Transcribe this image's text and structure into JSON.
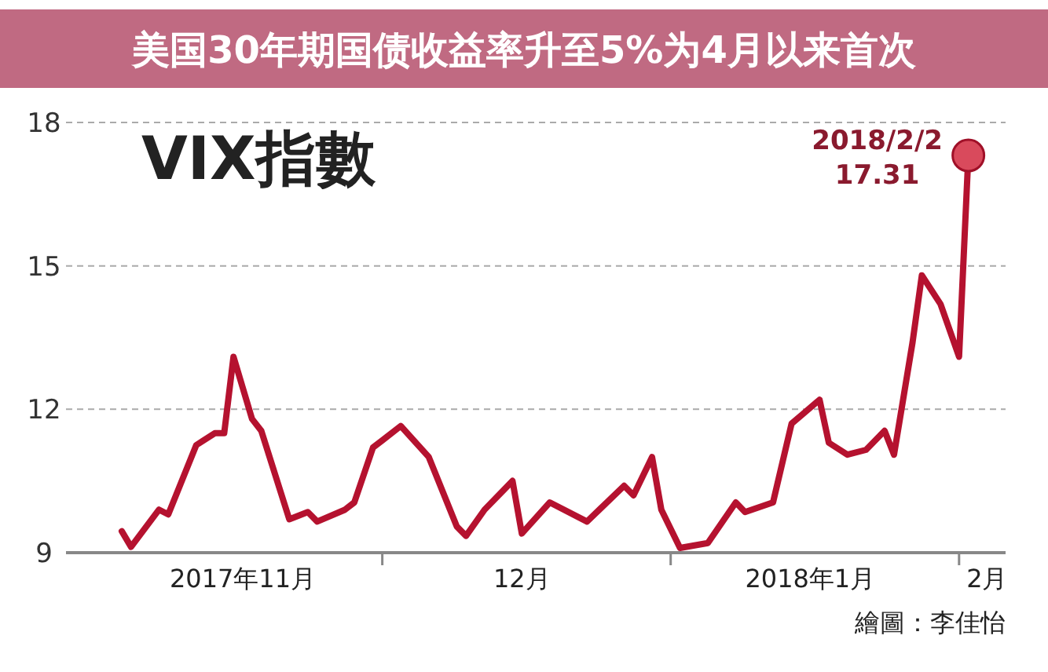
{
  "chart_data": {
    "type": "line",
    "title": "VIX指數",
    "subtitle": "美国30年期国债收益率升至5%为4月以来首次",
    "x": [
      "2017-11-03",
      "2017-11-04",
      "2017-11-07",
      "2017-11-08",
      "2017-11-11",
      "2017-11-13",
      "2017-11-14",
      "2017-11-15",
      "2017-11-17",
      "2017-11-18",
      "2017-11-21",
      "2017-11-23",
      "2017-11-24",
      "2017-11-27",
      "2017-11-28",
      "2017-11-30",
      "2017-12-01",
      "2017-12-03",
      "2017-12-06",
      "2017-12-09",
      "2017-12-10",
      "2017-12-12",
      "2017-12-15",
      "2017-12-16",
      "2017-12-19",
      "2017-12-23",
      "2017-12-27",
      "2017-12-28",
      "2017-12-30",
      "2017-12-31",
      "2018-01-02",
      "2018-01-05",
      "2018-01-08",
      "2018-01-09",
      "2018-01-12",
      "2018-01-14",
      "2018-01-17",
      "2018-01-18",
      "2018-01-20",
      "2018-01-22",
      "2018-01-24",
      "2018-01-25",
      "2018-01-27",
      "2018-01-28",
      "2018-01-30",
      "2018-02-01",
      "2018-02-02"
    ],
    "series": [
      {
        "color": "#b5122f",
        "values": [
          9.45,
          9.12,
          9.9,
          9.8,
          11.25,
          11.5,
          11.5,
          13.1,
          11.8,
          11.55,
          9.7,
          9.85,
          9.65,
          9.9,
          10.05,
          11.2,
          11.35,
          11.65,
          11.0,
          9.55,
          9.35,
          9.9,
          10.5,
          9.4,
          10.05,
          9.65,
          10.4,
          10.2,
          11.0,
          9.9,
          9.1,
          9.2,
          10.05,
          9.85,
          10.05,
          11.7,
          12.2,
          11.3,
          11.05,
          11.15,
          11.55,
          11.05,
          13.4,
          14.8,
          14.2,
          13.1,
          17.31
        ]
      }
    ],
    "xlim": [
      "2017-10-28",
      "2018-02-06"
    ],
    "xticks": [
      {
        "value": "2017-11-16",
        "label": "2017年11月"
      },
      {
        "value": "2017-12-01",
        "label": null
      },
      {
        "value": "2017-12-16",
        "label": "12月"
      },
      {
        "value": "2018-01-01",
        "label": null
      },
      {
        "value": "2018-01-16",
        "label": "2018年1月"
      },
      {
        "value": "2018-02-01",
        "label": null
      },
      {
        "value": "2018-02-04",
        "label": "2月"
      }
    ],
    "ylim": [
      9,
      18
    ],
    "yticks": [
      9,
      12,
      15,
      18
    ],
    "grid": "y",
    "line_style": "solid",
    "annotations": [
      {
        "text": "2018/2/2\n17.31",
        "x": "2018-02-02",
        "y": 17.31
      },
      "繪圖：李佳怡"
    ]
  }
}
